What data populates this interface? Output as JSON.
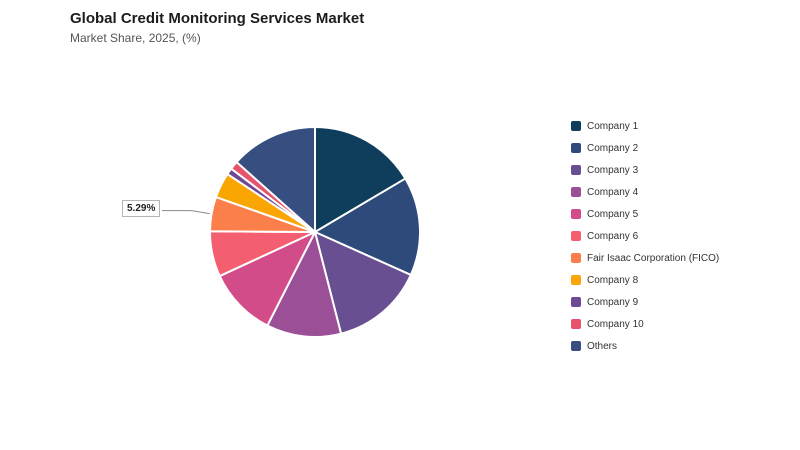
{
  "header": {
    "title": "Global Credit Monitoring Services Market",
    "subtitle": "Market Share, 2025, (%)"
  },
  "callout": {
    "label": "5.29%",
    "series": "Fair Isaac Corporation (FICO)"
  },
  "chart_data": {
    "type": "pie",
    "title": "Global Credit Monitoring Services Market",
    "subtitle": "Market Share, 2025, (%)",
    "legend_position": "right",
    "categories": [
      "Company 1",
      "Company 2",
      "Company 3",
      "Company 4",
      "Company 5",
      "Company 6",
      "Fair Isaac Corporation (FICO)",
      "Company 8",
      "Company 9",
      "Company 10",
      "Others"
    ],
    "values": [
      16.5,
      15.2,
      14.3,
      11.5,
      10.6,
      7.0,
      5.29,
      3.9,
      1.0,
      1.3,
      13.4
    ],
    "colors": [
      "#0f3d5c",
      "#2e4a7a",
      "#674f91",
      "#9b4f96",
      "#d34c8a",
      "#f35f71",
      "#fb7f4a",
      "#f9a602",
      "#6f4a94",
      "#e6536a",
      "#374e80"
    ],
    "value_labels": [
      {
        "category": "Fair Isaac Corporation (FICO)",
        "text": "5.29%"
      }
    ]
  }
}
